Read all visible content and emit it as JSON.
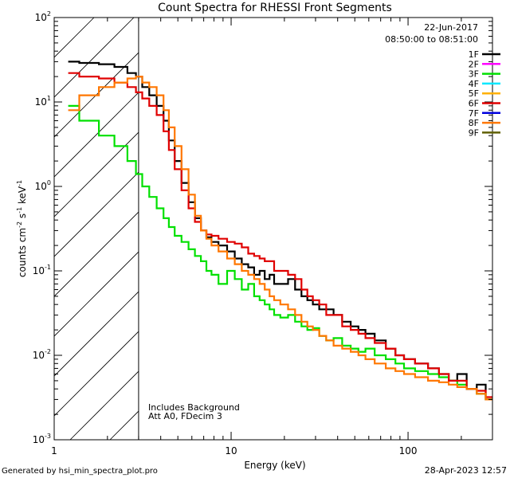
{
  "footer": {
    "generated_by": "Generated by hsi_min_spectra_plot.pro",
    "timestamp": "28-Apr-2023 12:57"
  },
  "chart_data": {
    "type": "line",
    "title": "Count Spectra for RHESSI Front Segments",
    "xlabel": "Energy (keV)",
    "ylabel": "counts cm",
    "ylabel_sup1": "-2",
    "ylabel_mid": " s",
    "ylabel_sup2": "-1",
    "ylabel_end": " keV",
    "ylabel_sup3": "-1",
    "x_scale": "log",
    "y_scale": "log",
    "xlim": [
      1,
      300
    ],
    "ylim": [
      0.001,
      100
    ],
    "x_ticks": [
      {
        "value": 1,
        "label": "1"
      },
      {
        "value": 10,
        "label": "10"
      },
      {
        "value": 100,
        "label": "100"
      }
    ],
    "y_ticks": [
      {
        "value": 0.001,
        "base": "10",
        "exp": "-3"
      },
      {
        "value": 0.01,
        "base": "10",
        "exp": "-2"
      },
      {
        "value": 0.1,
        "base": "10",
        "exp": "-1"
      },
      {
        "value": 1,
        "base": "10",
        "exp": "0"
      },
      {
        "value": 10,
        "base": "10",
        "exp": "1"
      },
      {
        "value": 100,
        "base": "10",
        "exp": "2"
      }
    ],
    "attenuator_cutoff_keV": 3,
    "legend": {
      "position": "top-right",
      "date": "22-Jun-2017",
      "time_range": "08:50:00 to 08:51:00",
      "entries": [
        {
          "name": "1F",
          "color": "#000000"
        },
        {
          "name": "2F",
          "color": "#ff00ff"
        },
        {
          "name": "3F",
          "color": "#00e000"
        },
        {
          "name": "4F",
          "color": "#00e8ff"
        },
        {
          "name": "5F",
          "color": "#ffb000"
        },
        {
          "name": "6F",
          "color": "#e00000"
        },
        {
          "name": "7F",
          "color": "#0000dd"
        },
        {
          "name": "8F",
          "color": "#ff7700"
        },
        {
          "name": "9F",
          "color": "#606000"
        }
      ]
    },
    "annotations": [
      "Includes Background",
      "Att A0, FDecim 3"
    ],
    "series": [
      {
        "name": "1F",
        "color": "#000000",
        "x": [
          1.2,
          1.6,
          2.0,
          2.4,
          2.8,
          3.0,
          3.3,
          3.6,
          4.0,
          4.3,
          4.6,
          5.0,
          5.5,
          6.0,
          6.5,
          7.0,
          7.5,
          8.0,
          9.0,
          10,
          11,
          12,
          13,
          14,
          15,
          16,
          17,
          18,
          20,
          22,
          24,
          26,
          28,
          30,
          33,
          36,
          40,
          45,
          50,
          55,
          60,
          70,
          80,
          90,
          100,
          120,
          140,
          160,
          180,
          200,
          230,
          260,
          290
        ],
        "y": [
          30,
          29,
          28,
          26,
          22,
          20,
          15,
          12,
          9,
          6,
          3.5,
          2.0,
          1.1,
          0.65,
          0.42,
          0.3,
          0.25,
          0.22,
          0.2,
          0.17,
          0.14,
          0.12,
          0.11,
          0.09,
          0.1,
          0.08,
          0.09,
          0.07,
          0.07,
          0.08,
          0.06,
          0.05,
          0.045,
          0.04,
          0.035,
          0.035,
          0.03,
          0.025,
          0.022,
          0.02,
          0.018,
          0.015,
          0.012,
          0.01,
          0.009,
          0.008,
          0.007,
          0.006,
          0.005,
          0.006,
          0.004,
          0.0045,
          0.003
        ]
      },
      {
        "name": "3F",
        "color": "#00e000",
        "x": [
          1.2,
          1.6,
          2.0,
          2.4,
          2.8,
          3.0,
          3.3,
          3.6,
          4.0,
          4.3,
          4.6,
          5.0,
          5.5,
          6.0,
          6.5,
          7.0,
          7.5,
          8.0,
          9.0,
          10,
          11,
          12,
          13,
          14,
          15,
          16,
          17,
          18,
          20,
          22,
          24,
          26,
          28,
          30,
          33,
          36,
          40,
          45,
          50,
          55,
          60,
          70,
          80,
          90,
          100,
          120,
          140,
          160,
          180,
          200,
          230,
          260,
          290
        ],
        "y": [
          9,
          6,
          4,
          3,
          2,
          1.4,
          1.0,
          0.75,
          0.55,
          0.42,
          0.33,
          0.26,
          0.22,
          0.18,
          0.15,
          0.13,
          0.1,
          0.09,
          0.07,
          0.1,
          0.08,
          0.06,
          0.07,
          0.05,
          0.045,
          0.04,
          0.035,
          0.03,
          0.028,
          0.03,
          0.025,
          0.022,
          0.02,
          0.021,
          0.017,
          0.015,
          0.016,
          0.013,
          0.012,
          0.011,
          0.012,
          0.01,
          0.009,
          0.008,
          0.007,
          0.0065,
          0.006,
          0.0055,
          0.005,
          0.0045,
          0.004,
          0.0035,
          0.003
        ]
      },
      {
        "name": "6F",
        "color": "#e00000",
        "x": [
          1.2,
          1.6,
          2.0,
          2.4,
          2.8,
          3.0,
          3.3,
          3.6,
          4.0,
          4.3,
          4.6,
          5.0,
          5.5,
          6.0,
          6.5,
          7.0,
          7.5,
          8.0,
          9.0,
          10,
          11,
          12,
          13,
          14,
          15,
          16,
          17,
          18,
          20,
          22,
          24,
          26,
          28,
          30,
          33,
          36,
          40,
          45,
          50,
          55,
          60,
          70,
          80,
          90,
          100,
          120,
          140,
          160,
          180,
          200,
          230,
          260,
          290
        ],
        "y": [
          22,
          20,
          19,
          17,
          15,
          13,
          11,
          9,
          7,
          4.5,
          2.7,
          1.6,
          0.9,
          0.55,
          0.38,
          0.3,
          0.27,
          0.26,
          0.24,
          0.22,
          0.21,
          0.19,
          0.16,
          0.15,
          0.14,
          0.13,
          0.13,
          0.1,
          0.1,
          0.09,
          0.08,
          0.06,
          0.05,
          0.045,
          0.04,
          0.03,
          0.03,
          0.022,
          0.02,
          0.018,
          0.016,
          0.014,
          0.012,
          0.01,
          0.009,
          0.008,
          0.007,
          0.006,
          0.005,
          0.005,
          0.004,
          0.0038,
          0.0032
        ]
      },
      {
        "name": "8F",
        "color": "#ff7700",
        "x": [
          1.2,
          1.6,
          2.0,
          2.4,
          2.8,
          3.0,
          3.3,
          3.6,
          4.0,
          4.3,
          4.6,
          5.0,
          5.5,
          6.0,
          6.5,
          7.0,
          7.5,
          8.0,
          9.0,
          10,
          11,
          12,
          13,
          14,
          15,
          16,
          17,
          18,
          20,
          22,
          24,
          26,
          28,
          30,
          33,
          36,
          40,
          45,
          50,
          55,
          60,
          70,
          80,
          90,
          100,
          120,
          140,
          160,
          180,
          200,
          230,
          260,
          290
        ],
        "y": [
          8,
          12,
          15,
          17,
          19,
          20,
          17,
          15,
          12,
          8,
          5,
          3,
          1.6,
          0.8,
          0.45,
          0.3,
          0.24,
          0.2,
          0.17,
          0.14,
          0.12,
          0.1,
          0.09,
          0.08,
          0.07,
          0.06,
          0.05,
          0.045,
          0.04,
          0.035,
          0.03,
          0.025,
          0.022,
          0.02,
          0.017,
          0.015,
          0.013,
          0.012,
          0.011,
          0.01,
          0.009,
          0.008,
          0.007,
          0.0065,
          0.006,
          0.0055,
          0.005,
          0.0048,
          0.0045,
          0.0042,
          0.004,
          0.0035,
          0.003
        ]
      }
    ]
  }
}
